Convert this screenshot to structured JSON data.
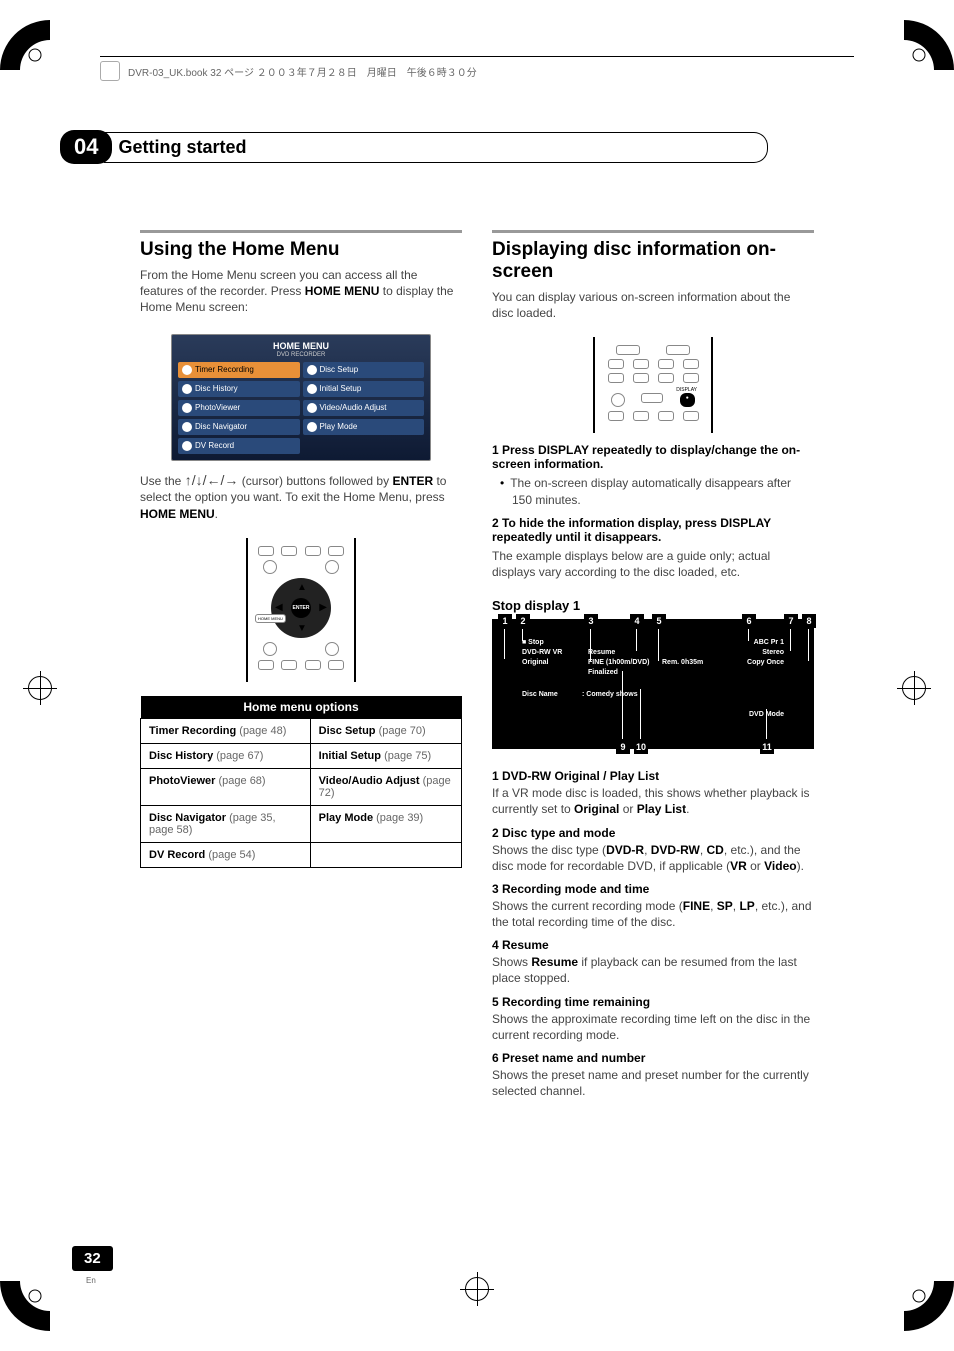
{
  "header": {
    "filename": "DVR-03_UK.book 32 ページ ２００３年７月２８日　月曜日　午後６時３０分"
  },
  "chapter": {
    "num": "04",
    "title": "Getting started"
  },
  "left": {
    "h1": "Using the Home Menu",
    "p1a": "From the Home Menu screen you can access all the features of the recorder. Press ",
    "p1b": "HOME MENU",
    "p1c": " to display the Home Menu screen:",
    "homemenu": {
      "title": "HOME MENU",
      "sub": "DVD RECORDER",
      "items": [
        {
          "label": "Timer Recording",
          "sel": true
        },
        {
          "label": "Disc Setup"
        },
        {
          "label": "Disc History"
        },
        {
          "label": "Initial Setup"
        },
        {
          "label": "PhotoViewer"
        },
        {
          "label": "Video/Audio Adjust"
        },
        {
          "label": "Disc Navigator"
        },
        {
          "label": "Play Mode"
        },
        {
          "label": "DV Record"
        }
      ]
    },
    "p2a": "Use the ",
    "p2b": " (cursor) buttons followed by ",
    "p2c": "ENTER",
    "p2d": " to select the option you want. To exit the Home Menu, press ",
    "p2e": "HOME MENU",
    "p2f": ".",
    "dpad_enter": "ENTER",
    "dpad_home": "HOME MENU",
    "table": {
      "header": "Home menu options",
      "rows": [
        {
          "l": "Timer Recording",
          "lp": "(page 48)",
          "r": "Disc Setup",
          "rp": "(page 70)"
        },
        {
          "l": "Disc History",
          "lp": "(page 67)",
          "r": "Initial Setup",
          "rp": "(page 75)"
        },
        {
          "l": "PhotoViewer",
          "lp": "(page 68)",
          "r": "Video/Audio Adjust",
          "rp": "(page 72)"
        },
        {
          "l": "Disc Navigator",
          "lp": "(page 35, page 58)",
          "r": "Play Mode",
          "rp": "(page 39)"
        },
        {
          "l": "DV Record",
          "lp": "(page 54)",
          "r": "",
          "rp": ""
        }
      ]
    }
  },
  "right": {
    "h1": "Displaying disc information on-screen",
    "p1": "You can display various on-screen information about the disc loaded.",
    "display_label": "DISPLAY",
    "step1": "1    Press DISPLAY repeatedly to display/change the on-screen information.",
    "bullet1": "The on-screen display automatically disappears after 150 minutes.",
    "step2": "2    To hide the information display, press DISPLAY repeatedly until it disappears.",
    "p2": "The example displays below are a guide only; actual displays vary according to the disc loaded, etc.",
    "sub": "Stop display 1",
    "sd": {
      "stop": "■ Stop",
      "dvdrw": "DVD-RW  VR",
      "original": "Original",
      "resume": "Resume",
      "fine": "FINE (1h00m/DVD)",
      "finalized": "Finalized",
      "rem": "Rem.    0h35m",
      "abc": "ABC  Pr 1",
      "stereo": "Stereo",
      "copy": "Copy Once",
      "discname": "Disc Name",
      "comedy": ": Comedy shows",
      "dvdmode": "DVD Mode"
    },
    "items": [
      {
        "h": "1    DVD-RW Original / Play List",
        "b": "If a VR mode disc is loaded, this shows whether playback is currently set to <b>Original</b> or <b>Play List</b>."
      },
      {
        "h": "2    Disc type and mode",
        "b": "Shows the disc type (<b>DVD-R</b>, <b>DVD-RW</b>, <b>CD</b>, etc.), and the disc mode for recordable DVD, if applicable (<b>VR</b> or <b>Video</b>)."
      },
      {
        "h": "3    Recording mode and time",
        "b": "Shows the current recording mode (<b>FINE</b>, <b>SP</b>, <b>LP</b>, etc.), and the total recording time of the disc."
      },
      {
        "h": "4    Resume",
        "b": "Shows <b>Resume</b> if playback can be resumed from the last place stopped."
      },
      {
        "h": "5    Recording time remaining",
        "b": "Shows the approximate recording time left on the disc in the current recording mode."
      },
      {
        "h": "6    Preset name and number",
        "b": "Shows the preset name and preset number for the currently selected channel."
      }
    ]
  },
  "page": {
    "num": "32",
    "lang": "En"
  }
}
